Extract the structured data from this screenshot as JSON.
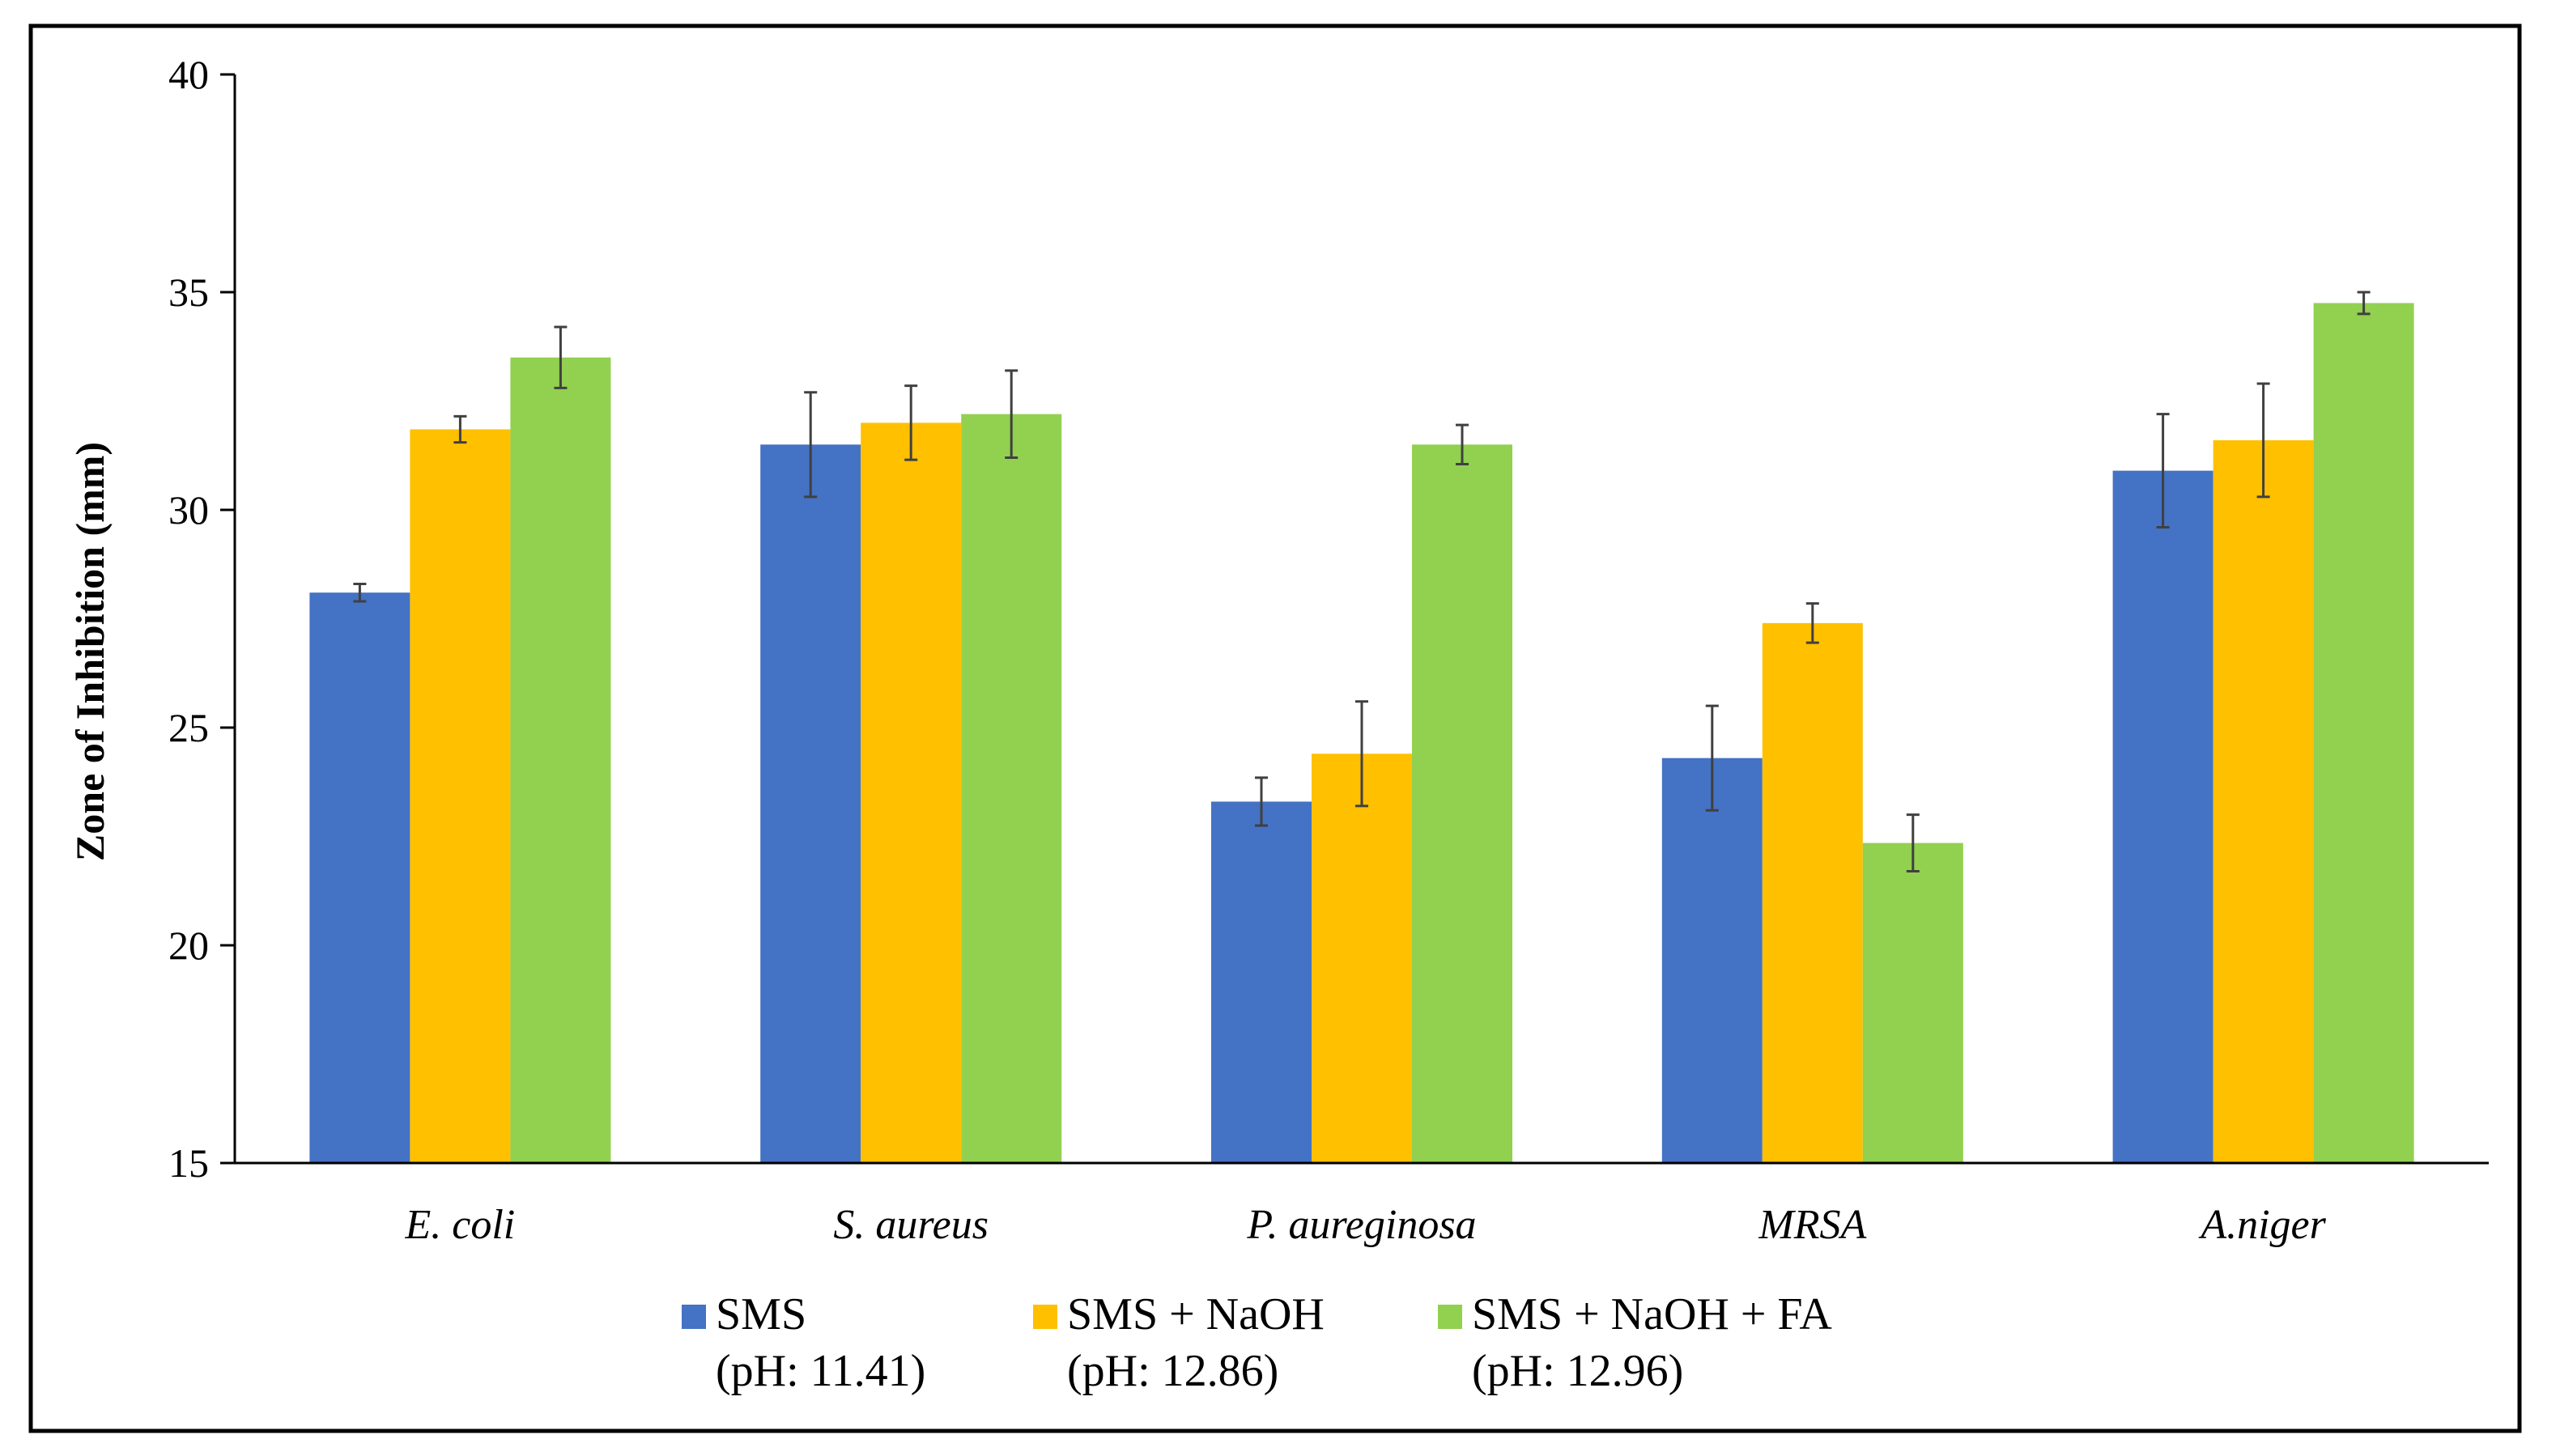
{
  "chart_data": {
    "type": "bar",
    "title": "",
    "xlabel": "",
    "ylabel": "Zone of Inhibition (mm)",
    "ylim": [
      15,
      40
    ],
    "yticks": [
      15,
      20,
      25,
      30,
      35,
      40
    ],
    "grid": false,
    "legend_position": "bottom",
    "categories": [
      "E. coli",
      "S. aureus",
      "P. aureginosa",
      "MRSA",
      "A.niger"
    ],
    "series": [
      {
        "name": "SMS",
        "sublabel": "(pH: 11.41)",
        "color": "#4472C4",
        "values": [
          28.1,
          31.5,
          23.3,
          24.3,
          30.9
        ],
        "errors": [
          0.2,
          1.2,
          0.55,
          1.2,
          1.3
        ]
      },
      {
        "name": "SMS + NaOH",
        "sublabel": "(pH: 12.86)",
        "color": "#FFC000",
        "values": [
          31.85,
          32.0,
          24.4,
          27.4,
          31.6
        ],
        "errors": [
          0.3,
          0.85,
          1.2,
          0.45,
          1.3
        ]
      },
      {
        "name": "SMS + NaOH + FA",
        "sublabel": "(pH: 12.96)",
        "color": "#92D050",
        "values": [
          33.5,
          32.2,
          31.5,
          22.35,
          34.75
        ],
        "errors": [
          0.7,
          1.0,
          0.45,
          0.65,
          0.25
        ]
      }
    ]
  }
}
